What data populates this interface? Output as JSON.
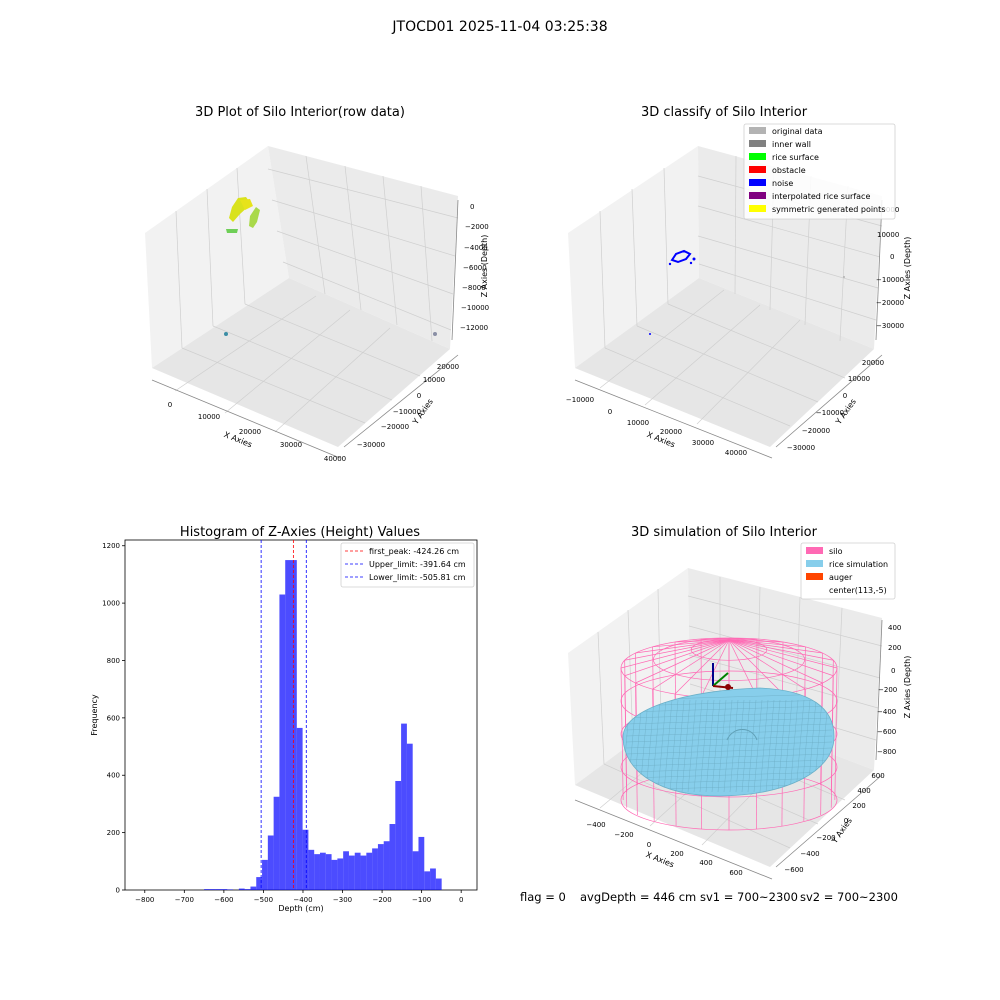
{
  "suptitle": "JTOCD01 2025-11-04 03:25:38",
  "chart_data": [
    {
      "type": "scatter",
      "title": "3D Plot of Silo Interior(row data)",
      "xlabel": "X Axies",
      "ylabel": "Y Axies",
      "zlabel": "Z Axies (Depth)",
      "x_ticks": [
        "0",
        "10000",
        "20000",
        "30000",
        "40000"
      ],
      "y_ticks": [
        "−30000",
        "−20000",
        "−10000",
        "0",
        "10000",
        "20000"
      ],
      "z_ticks": [
        "−12000",
        "−10000",
        "−8000",
        "−6000",
        "−4000",
        "−2000",
        "0"
      ],
      "colors": {
        "points": "#c8dc2a",
        "low": "#6fcf57",
        "outlier": "#3b8ea5"
      }
    },
    {
      "type": "scatter",
      "title": "3D classify of Silo Interior",
      "xlabel": "X Axies",
      "ylabel": "Y Axies",
      "zlabel": "Z Axies (Depth)",
      "x_ticks": [
        "−10000",
        "0",
        "10000",
        "20000",
        "30000",
        "40000"
      ],
      "y_ticks": [
        "−30000",
        "−20000",
        "−10000",
        "0",
        "10000",
        "20000"
      ],
      "z_ticks": [
        "−30000",
        "−20000",
        "−10000",
        "0",
        "10000",
        "20000"
      ],
      "legend": [
        {
          "label": "original data",
          "color": "#b3b3b3"
        },
        {
          "label": "inner wall",
          "color": "#808080"
        },
        {
          "label": "rice surface",
          "color": "#00ff00"
        },
        {
          "label": "obstacle",
          "color": "#ff0000"
        },
        {
          "label": "noise",
          "color": "#0000ff"
        },
        {
          "label": "interpolated rice surface",
          "color": "#800080"
        },
        {
          "label": "symmetric generated points",
          "color": "#ffff00"
        }
      ]
    },
    {
      "type": "bar",
      "title": "Histogram of Z-Axies (Height) Values",
      "xlabel": "Depth (cm)",
      "ylabel": "Frequency",
      "xlim": [
        -850,
        40
      ],
      "ylim": [
        0,
        1220
      ],
      "x_ticks": [
        -800,
        -700,
        -600,
        -500,
        -400,
        -300,
        -200,
        -100,
        0
      ],
      "x_tick_labels": [
        "−800",
        "−700",
        "−600",
        "−500",
        "−400",
        "−300",
        "−200",
        "−100",
        "0"
      ],
      "y_ticks": [
        0,
        200,
        400,
        600,
        800,
        1000,
        1200
      ],
      "bar_color": "#0000ff",
      "bin_width": 14.65,
      "bins_start": [
        -650,
        -635.35,
        -620.7,
        -606.05,
        -591.4,
        -576.75,
        -562.1,
        -547.45,
        -532.8,
        -518.15,
        -503.5,
        -488.85,
        -474.2,
        -459.55,
        -444.9,
        -430.25,
        -415.6,
        -400.95,
        -386.3,
        -371.65,
        -357.0,
        -342.35,
        -327.7,
        -313.05,
        -298.4,
        -283.75,
        -269.1,
        -254.45,
        -239.8,
        -225.15,
        -210.5,
        -195.85,
        -181.2,
        -166.55,
        -151.9,
        -137.25,
        -122.6,
        -107.95,
        -93.3,
        -78.65,
        -64.0,
        -49.35,
        -34.7,
        -20.05
      ],
      "counts": [
        3,
        3,
        3,
        3,
        2,
        0,
        5,
        3,
        12,
        45,
        105,
        190,
        325,
        1030,
        1150,
        1150,
        565,
        210,
        140,
        125,
        130,
        125,
        105,
        110,
        135,
        120,
        130,
        120,
        130,
        145,
        160,
        170,
        230,
        380,
        580,
        510,
        135,
        185,
        65,
        75,
        40,
        0,
        0,
        0
      ],
      "vlines": [
        {
          "label": "first_peak: -424.26 cm",
          "x": -424.26,
          "color": "#ff0000"
        },
        {
          "label": "Upper_limit: -391.64 cm",
          "x": -391.64,
          "color": "#0000ff"
        },
        {
          "label": "Lower_limit: -505.81 cm",
          "x": -505.81,
          "color": "#0000ff"
        }
      ]
    },
    {
      "type": "scatter",
      "title": "3D simulation of Silo Interior",
      "xlabel": "X Axies",
      "ylabel": "Y Axies",
      "zlabel": "Z Axies (Depth)",
      "x_ticks": [
        "−400",
        "−200",
        "0",
        "200",
        "400",
        "600"
      ],
      "y_ticks": [
        "−600",
        "−400",
        "−200",
        "0",
        "200",
        "400",
        "600"
      ],
      "z_ticks": [
        "−800",
        "−600",
        "−400",
        "−200",
        "0",
        "200",
        "400"
      ],
      "legend": [
        {
          "label": "silo",
          "color": "#ff69b4"
        },
        {
          "label": "rice simulation",
          "color": "#87ceeb"
        },
        {
          "label": "auger",
          "color": "#ff4500"
        },
        {
          "label": "center(113,-5)",
          "color": ""
        }
      ]
    }
  ],
  "footer": {
    "flag": "flag = 0",
    "avg": "avgDepth = 446 cm",
    "sv1": "sv1 = 700~2300",
    "sv2": "sv2 = 700~2300"
  }
}
